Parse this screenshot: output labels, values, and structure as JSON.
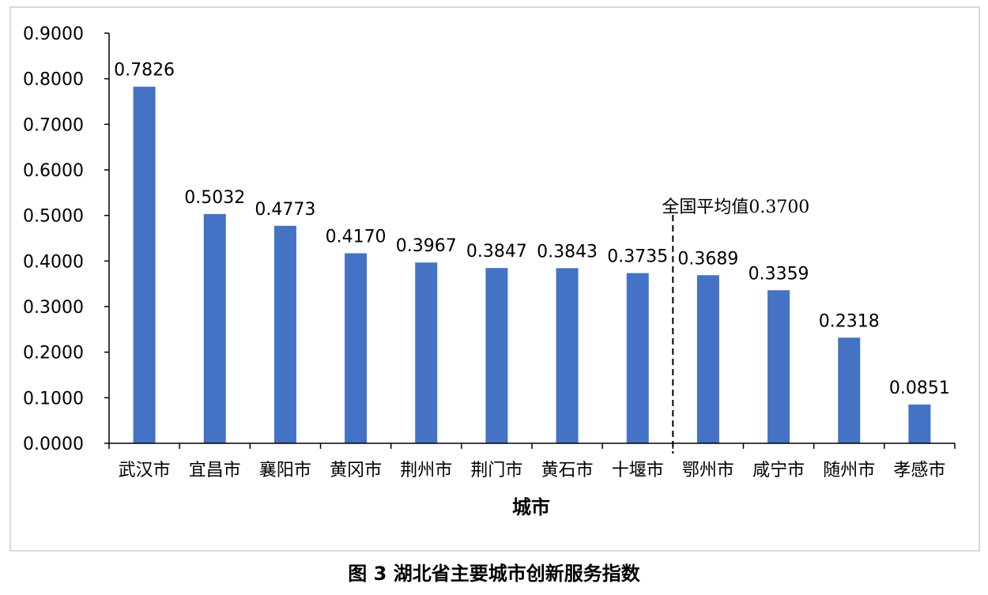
{
  "chart_data": {
    "type": "bar",
    "categories": [
      "武汉市",
      "宜昌市",
      "襄阳市",
      "黄冈市",
      "荆州市",
      "荆门市",
      "黄石市",
      "十堰市",
      "鄂州市",
      "咸宁市",
      "随州市",
      "孝感市"
    ],
    "values": [
      0.7826,
      0.5032,
      0.4773,
      0.417,
      0.3967,
      0.3847,
      0.3843,
      0.3735,
      0.3689,
      0.3359,
      0.2318,
      0.0851
    ],
    "data_labels": [
      "0.7826",
      "0.5032",
      "0.4773",
      "0.4170",
      "0.3967",
      "0.3847",
      "0.3843",
      "0.3735",
      "0.3689",
      "0.3359",
      "0.2318",
      "0.0851"
    ],
    "xlabel": "城市",
    "ylabel": "",
    "ylim": [
      0,
      0.9
    ],
    "yticks": [
      0,
      0.1,
      0.2,
      0.3,
      0.4,
      0.5,
      0.6,
      0.7,
      0.8,
      0.9
    ],
    "ytick_labels": [
      "0.0000",
      "0.1000",
      "0.2000",
      "0.3000",
      "0.4000",
      "0.5000",
      "0.6000",
      "0.7000",
      "0.8000",
      "0.9000"
    ],
    "bar_color": "#4472c4",
    "grid": false,
    "reference_line": {
      "label": "全国平均值0.3700",
      "position_between": [
        "十堰市",
        "鄂州市"
      ],
      "style": "dashed"
    }
  },
  "caption": "图 3 湖北省主要城市创新服务指数"
}
